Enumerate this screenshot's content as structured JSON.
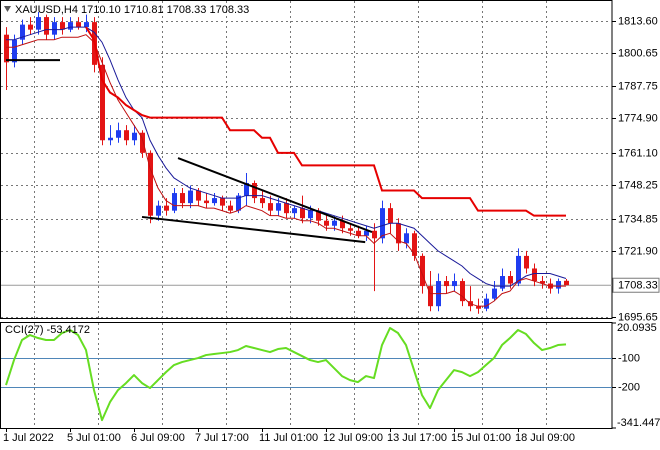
{
  "chart_data": {
    "type": "candlestick",
    "title": "XAUUSD,H4  1710.10 1710.81 1708.33 1708.33",
    "categories": [
      "1 Jul 2022",
      null,
      null,
      null,
      null,
      null,
      null,
      null,
      "5 Jul 01:00",
      null,
      null,
      null,
      null,
      null,
      null,
      null,
      "6 Jul 09:00",
      null,
      null,
      null,
      null,
      null,
      null,
      null,
      "7 Jul 17:00",
      null,
      null,
      null,
      null,
      null,
      null,
      null,
      "11 Jul 01:00",
      null,
      null,
      null,
      null,
      null,
      null,
      null,
      "12 Jul 09:00",
      null,
      null,
      null,
      null,
      null,
      null,
      null,
      "13 Jul 17:00",
      null,
      null,
      null,
      null,
      null,
      null,
      null,
      "15 Jul 01:00",
      null,
      null,
      null,
      null,
      null,
      null,
      null,
      "18 Jul 09:00",
      null,
      null,
      null,
      null,
      null,
      null
    ],
    "open": [
      1808,
      1797,
      1806,
      1812,
      1810,
      1815,
      1808,
      1813,
      1810,
      1813,
      1811,
      1813,
      1796,
      1766,
      1767,
      1770,
      1766,
      1769,
      1761,
      1736,
      1740,
      1738,
      1745,
      1741,
      1746,
      1742,
      1741,
      1743,
      1740,
      1738,
      1744,
      1749,
      1743,
      1741,
      1738,
      1741,
      1737,
      1739,
      1735,
      1738,
      1734,
      1732,
      1734,
      1731,
      1730,
      1728,
      1730,
      1727,
      1739,
      1733,
      1725,
      1729,
      1720,
      1708,
      1700,
      1710,
      1708,
      1710,
      1702,
      1700,
      1699,
      1703,
      1707,
      1712,
      1709,
      1720,
      1715,
      1710,
      1709,
      1707,
      1710.1
    ],
    "high": [
      1811,
      1808,
      1814,
      1815,
      1817,
      1816,
      1815,
      1815,
      1815,
      1815,
      1816,
      1815,
      1799,
      1772,
      1773,
      1772,
      1772,
      1770,
      1762,
      1742,
      1743,
      1747,
      1747,
      1748,
      1747,
      1745,
      1745,
      1744,
      1742,
      1745,
      1753,
      1750,
      1746,
      1744,
      1743,
      1743,
      1740,
      1744,
      1740,
      1739,
      1737,
      1736,
      1736,
      1733,
      1732,
      1732,
      1733,
      1742,
      1741,
      1735,
      1731,
      1730,
      1721,
      1714,
      1713,
      1712,
      1713,
      1711,
      1708,
      1703,
      1705,
      1710,
      1715,
      1714,
      1723,
      1722,
      1717,
      1712,
      1711,
      1711,
      1710.81
    ],
    "low": [
      1786,
      1795,
      1804,
      1808,
      1808,
      1806,
      1806,
      1808,
      1809,
      1810,
      1809,
      1793,
      1764,
      1764,
      1765,
      1764,
      1764,
      1759,
      1733,
      1734,
      1736,
      1737,
      1739,
      1739,
      1740,
      1739,
      1740,
      1738,
      1737,
      1737,
      1740,
      1741,
      1739,
      1736,
      1736,
      1735,
      1735,
      1733,
      1733,
      1732,
      1730,
      1730,
      1729,
      1728,
      1727,
      1726,
      1706,
      1725,
      1729,
      1722,
      1723,
      1718,
      1705,
      1698,
      1698,
      1705,
      1706,
      1700,
      1698,
      1697,
      1698,
      1702,
      1706,
      1707,
      1708,
      1713,
      1708,
      1707,
      1705,
      1705,
      1708.33
    ],
    "close": [
      1797,
      1806,
      1812,
      1810,
      1815,
      1808,
      1813,
      1810,
      1813,
      1811,
      1813,
      1796,
      1766,
      1767,
      1770,
      1766,
      1769,
      1761,
      1736,
      1740,
      1738,
      1745,
      1741,
      1746,
      1742,
      1741,
      1743,
      1740,
      1738,
      1744,
      1749,
      1743,
      1741,
      1738,
      1741,
      1737,
      1739,
      1735,
      1738,
      1734,
      1732,
      1734,
      1731,
      1730,
      1728,
      1730,
      1727,
      1739,
      1733,
      1725,
      1729,
      1720,
      1708,
      1700,
      1710,
      1708,
      1710,
      1702,
      1700,
      1699,
      1703,
      1707,
      1712,
      1709,
      1720,
      1715,
      1710,
      1709,
      1707,
      1710,
      1708.33
    ],
    "up_color": "#1f3df0",
    "down_color": "#e31414",
    "series": [
      {
        "color": "#1a1a99",
        "width": 1,
        "values": [
          1806,
          1806,
          1807,
          1808,
          1809,
          1810,
          1810,
          1810,
          1811,
          1811,
          1811,
          1809,
          1805,
          1798,
          1790,
          1783,
          1778,
          1775,
          1766,
          1760,
          1755,
          1751,
          1749,
          1747,
          1746,
          1745,
          1744,
          1743,
          1743,
          1743,
          1744,
          1744,
          1744,
          1743,
          1742,
          1741,
          1740,
          1739,
          1738,
          1738,
          1737,
          1736,
          1735,
          1734,
          1733,
          1732,
          1731,
          1732,
          1733,
          1733,
          1732,
          1731,
          1728,
          1725,
          1722,
          1720,
          1718,
          1716,
          1713,
          1711,
          1709,
          1708,
          1708,
          1708,
          1710,
          1712,
          1713,
          1713,
          1713,
          1712,
          1711
        ]
      },
      {
        "color": "#c01010",
        "width": 1,
        "values": [
          1803,
          1803,
          1804,
          1805,
          1806,
          1806,
          1806,
          1807,
          1807,
          1807,
          1808,
          1805,
          1797,
          1789,
          1782,
          1777,
          1772,
          1767,
          1755,
          1747,
          1742,
          1740,
          1740,
          1740,
          1740,
          1739,
          1739,
          1738,
          1737,
          1738,
          1740,
          1739,
          1738,
          1736,
          1736,
          1735,
          1735,
          1734,
          1734,
          1733,
          1731,
          1731,
          1730,
          1729,
          1728,
          1728,
          1725,
          1728,
          1729,
          1726,
          1725,
          1721,
          1713,
          1705,
          1705,
          1705,
          1706,
          1704,
          1701,
          1700,
          1700,
          1702,
          1705,
          1706,
          1710,
          1711,
          1710,
          1709,
          1708,
          1708,
          1708
        ]
      },
      {
        "color": "#e60000",
        "width": 2,
        "values": [
          null,
          null,
          null,
          null,
          null,
          null,
          null,
          null,
          null,
          null,
          1811,
          1806,
          1790,
          1785,
          1783,
          1780,
          1778,
          1776,
          1775,
          1775,
          1775,
          1775,
          1775,
          1775,
          1775,
          1775,
          1775,
          1775,
          1770,
          1770,
          1770,
          1770,
          1767,
          1767,
          1761,
          1761,
          1761,
          1756,
          1756,
          1756,
          1756,
          1756,
          1756,
          1756,
          1756,
          1756,
          1756,
          1746,
          1746,
          1746,
          1746,
          1746,
          1743,
          1743,
          1743,
          1743,
          1743,
          1743,
          1743,
          1738,
          1738,
          1738,
          1738,
          1738,
          1738,
          1738,
          1736,
          1736,
          1736,
          1736,
          1736
        ]
      }
    ],
    "trend_lines": [
      {
        "x": [
          21.5,
          45.75
        ],
        "y": [
          1758.9,
          1729.5
        ]
      },
      {
        "x": [
          17,
          44.9
        ],
        "y": [
          1735.5,
          1725.5
        ]
      },
      {
        "x": [
          0,
          6.75
        ],
        "y": [
          1797.9,
          1797.9
        ]
      }
    ],
    "last_price": 1708.33,
    "ylim": [
      1695.3,
      1821.0
    ],
    "yticks": [
      {
        "value": 1813.6,
        "label": "1813.60"
      },
      1800.65,
      1787.75,
      {
        "value": 1774.9,
        "label": "1774.90"
      },
      {
        "value": 1761.1,
        "label": "1761.10"
      },
      1748.25,
      1734.85,
      {
        "value": 1721.9,
        "label": "1721.90"
      },
      1695.65
    ],
    "grid": true,
    "indicator": {
      "type": "line",
      "title": "CCI(27) -53.4172",
      "color": "#66dd22",
      "values": [
        -193.7,
        -107.5,
        -38.5,
        -21.3,
        -31.6,
        -38.5,
        -38.5,
        -14.4,
        -4,
        -21.3,
        -73,
        -211,
        -314.4,
        -252.3,
        -211,
        -186.8,
        -159.2,
        -186.8,
        -204,
        -176.5,
        -149,
        -124.7,
        -114.4,
        -107.5,
        -100.6,
        -90.3,
        -86.8,
        -83.4,
        -80,
        -73,
        -59.2,
        -66.1,
        -73,
        -80,
        -69.6,
        -66.1,
        -80,
        -93.7,
        -107.5,
        -114.4,
        -107.5,
        -135.1,
        -162.7,
        -176.5,
        -183.4,
        -162.7,
        -169.6,
        -55.8,
        2.9,
        -14.4,
        -55.8,
        -142,
        -228.2,
        -273,
        -211,
        -176.5,
        -142,
        -149,
        -162.7,
        -149,
        -124.7,
        -100.6,
        -55.8,
        -31.6,
        -4,
        -17.9,
        -48.9,
        -73,
        -66.1,
        -55.8,
        -53.4172
      ],
      "ylim": [
        -341.4479,
        20.0935
      ],
      "yticks": [
        20.0935,
        -341.4479
      ],
      "levels": [
        -100,
        -200
      ],
      "level_color": "#4f86b8"
    }
  }
}
